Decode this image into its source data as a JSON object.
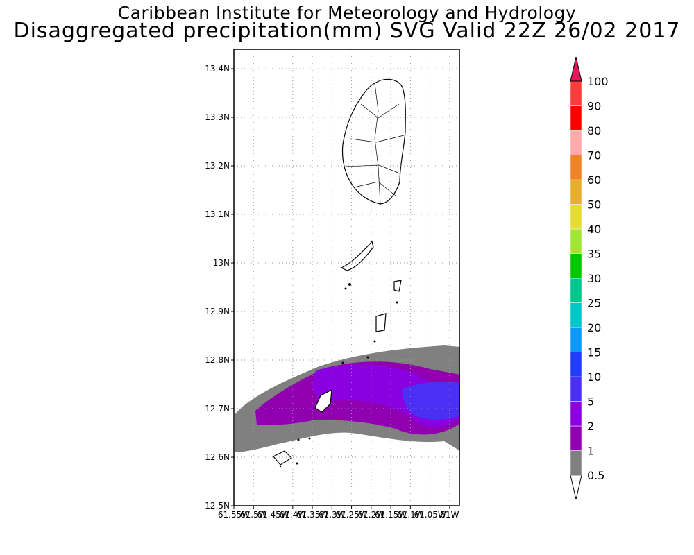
{
  "header": {
    "line1": "Caribbean Institute for Meteorology and Hydrology",
    "line2": "Disaggregated precipitation(mm) SVG Valid 22Z 26/02 2017"
  },
  "map": {
    "lat_ticks": [
      "12.5N",
      "12.6N",
      "12.7N",
      "12.8N",
      "12.9N",
      "13N",
      "13.1N",
      "13.2N",
      "13.3N",
      "13.4N"
    ],
    "lon_ticks": [
      "61.55W",
      "61.5W",
      "61.45W",
      "61.4W",
      "61.35W",
      "61.3W",
      "61.25W",
      "61.2W",
      "61.15W",
      "61.1W",
      "61.05W",
      "61W"
    ],
    "grid": true
  },
  "colorbar": {
    "labels": [
      "0.5",
      "1",
      "2",
      "5",
      "10",
      "15",
      "20",
      "25",
      "30",
      "35",
      "40",
      "50",
      "60",
      "70",
      "80",
      "90",
      "100"
    ],
    "colors": [
      "#808080",
      "#9000b0",
      "#8a00e0",
      "#4b2ff5",
      "#1f3cff",
      "#0a9aff",
      "#00c8c8",
      "#00c88c",
      "#00c800",
      "#a0e632",
      "#e6dc32",
      "#e6af2d",
      "#f08228",
      "#ffaaaa",
      "#ff0000",
      "#ff3c3c",
      "#e6145a"
    ]
  }
}
